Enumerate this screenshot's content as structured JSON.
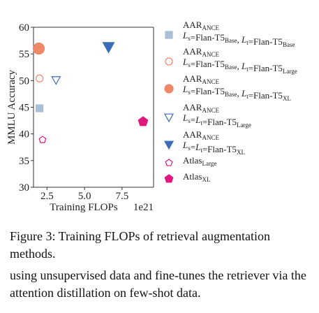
{
  "chart_data": {
    "type": "scatter",
    "xlabel": "Training FLOPs",
    "x_offset_label": "1e21",
    "ylabel": "MMLU Accuracy",
    "xlim": [
      1.6,
      9.6
    ],
    "ylim": [
      30,
      60
    ],
    "xticks": [
      2.5,
      5.0,
      7.5
    ],
    "xtick_labels": [
      "2.5",
      "5.0",
      "7.5"
    ],
    "yticks": [
      30,
      35,
      40,
      45,
      50,
      55,
      60
    ],
    "grid": false,
    "legend_position": "right",
    "series": [
      {
        "name": "AAR_ANCE Ls=Flan-T5Base, Lt=Flan-T5Base",
        "marker": "square",
        "color": "#a8bfd6",
        "filled": true,
        "size": 5,
        "points": [
          {
            "x": 2.0,
            "y": 44.8
          }
        ],
        "legend": {
          "title": "AAR",
          "title_sub": "ANCE",
          "line": [
            [
              "L",
              "s",
              "=Flan-T5",
              "Base",
              ", "
            ],
            [
              "L",
              "t",
              "=Flan-T5",
              "Base",
              ""
            ]
          ]
        }
      },
      {
        "name": "AAR_ANCE Ls=Flan-T5Base, Lt=Flan-T5Large",
        "marker": "circle",
        "color": "#ee8866",
        "filled": false,
        "size": 5,
        "points": [
          {
            "x": 2.0,
            "y": 50.4
          }
        ],
        "legend": {
          "title": "AAR",
          "title_sub": "ANCE",
          "line": [
            [
              "L",
              "s",
              "=Flan-T5",
              "Base",
              ", "
            ],
            [
              "L",
              "t",
              "=Flan-T5",
              "Large",
              ""
            ]
          ]
        }
      },
      {
        "name": "AAR_ANCE Ls=Flan-T5Base, Lt=Flan-T5XL",
        "marker": "circle",
        "color": "#ee8866",
        "filled": true,
        "size": 8,
        "points": [
          {
            "x": 1.95,
            "y": 56.0
          }
        ],
        "legend": {
          "title": "AAR",
          "title_sub": "ANCE",
          "line": [
            [
              "L",
              "s",
              "=Flan-T5",
              "Base",
              ", "
            ],
            [
              "L",
              "t",
              "=Flan-T5",
              "XL",
              ""
            ]
          ]
        }
      },
      {
        "name": "AAR_ANCE Ls=Lt=Flan-T5Large",
        "marker": "triangle-down",
        "color": "#3a6db5",
        "filled": false,
        "size": 6,
        "points": [
          {
            "x": 3.1,
            "y": 50.1
          }
        ],
        "legend": {
          "title": "AAR",
          "title_sub": "ANCE",
          "line": [
            [
              "L",
              "s",
              "=",
              "",
              ""
            ],
            [
              "L",
              "t",
              "=Flan-T5",
              "Large",
              ""
            ]
          ]
        }
      },
      {
        "name": "AAR_ANCE Ls=Lt=Flan-T5XL",
        "marker": "triangle-down",
        "color": "#3a6db5",
        "filled": true,
        "size": 8,
        "points": [
          {
            "x": 6.6,
            "y": 56.3
          }
        ],
        "legend": {
          "title": "AAR",
          "title_sub": "ANCE",
          "line": [
            [
              "L",
              "s",
              "=",
              "",
              ""
            ],
            [
              "L",
              "t",
              "=Flan-T5",
              "XL",
              ""
            ]
          ]
        }
      },
      {
        "name": "Atlas_Large",
        "marker": "pentagon",
        "color": "#e0177f",
        "filled": false,
        "size": 5,
        "points": [
          {
            "x": 2.2,
            "y": 38.9
          }
        ],
        "legend": {
          "title": "Atlas",
          "title_sub": "Large",
          "line": []
        }
      },
      {
        "name": "Atlas_XL",
        "marker": "pentagon",
        "color": "#e0177f",
        "filled": true,
        "size": 7,
        "points": [
          {
            "x": 8.9,
            "y": 42.3
          }
        ],
        "legend": {
          "title": "Atlas",
          "title_sub": "XL",
          "line": []
        }
      }
    ]
  },
  "caption": "Figure 3: Training FLOPs of retrieval augmentation methods.",
  "body_text": "using unsupervised data and fine-tunes the retriever via the attention distillation on few-shot data."
}
